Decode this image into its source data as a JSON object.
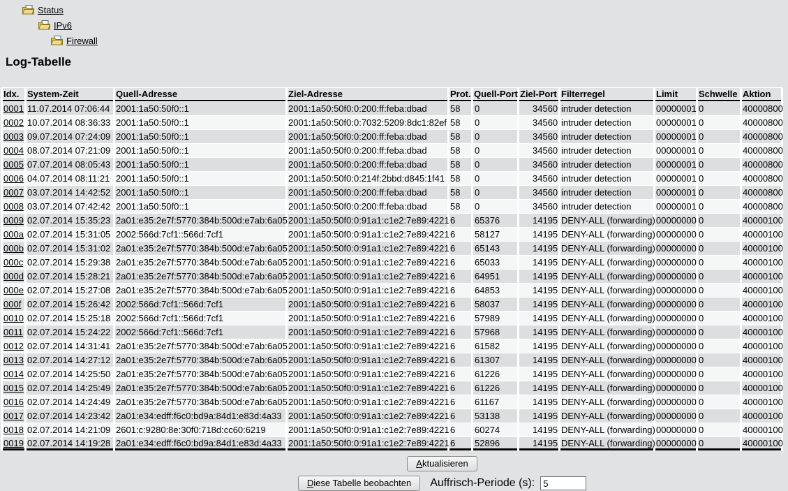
{
  "nav": {
    "items": [
      {
        "label": "Status"
      },
      {
        "label": "IPv6"
      },
      {
        "label": "Firewall"
      }
    ]
  },
  "page": {
    "title": "Log-Tabelle"
  },
  "log_table": {
    "columns": [
      "Idx.",
      "System-Zeit",
      "Quell-Adresse",
      "Ziel-Adresse",
      "Prot.",
      "Quell-Port",
      "Ziel-Port",
      "Filterregel",
      "Limit",
      "Schwelle",
      "Aktion"
    ],
    "rows": [
      [
        "0001",
        "11.07.2014 07:06:44",
        "2001:1a50:50f0::1",
        "2001:1a50:50f0:0:200:ff:feba:dbad",
        "58",
        "0",
        "34560",
        "intruder detection",
        "00000001",
        "0",
        "40000800"
      ],
      [
        "0002",
        "10.07.2014 08:36:33",
        "2001:1a50:50f0::1",
        "2001:1a50:50f0:0:7032:5209:8dc1:82ef",
        "58",
        "0",
        "34560",
        "intruder detection",
        "00000001",
        "0",
        "40000800"
      ],
      [
        "0003",
        "09.07.2014 07:24:09",
        "2001:1a50:50f0::1",
        "2001:1a50:50f0:0:200:ff:feba:dbad",
        "58",
        "0",
        "34560",
        "intruder detection",
        "00000001",
        "0",
        "40000800"
      ],
      [
        "0004",
        "08.07.2014 07:21:09",
        "2001:1a50:50f0::1",
        "2001:1a50:50f0:0:200:ff:feba:dbad",
        "58",
        "0",
        "34560",
        "intruder detection",
        "00000001",
        "0",
        "40000800"
      ],
      [
        "0005",
        "07.07.2014 08:05:43",
        "2001:1a50:50f0::1",
        "2001:1a50:50f0:0:200:ff:feba:dbad",
        "58",
        "0",
        "34560",
        "intruder detection",
        "00000001",
        "0",
        "40000800"
      ],
      [
        "0006",
        "04.07.2014 08:11:21",
        "2001:1a50:50f0::1",
        "2001:1a50:50f0:0:214f:2bbd:d845:1f41",
        "58",
        "0",
        "34560",
        "intruder detection",
        "00000001",
        "0",
        "40000800"
      ],
      [
        "0007",
        "03.07.2014 14:42:52",
        "2001:1a50:50f0::1",
        "2001:1a50:50f0:0:200:ff:feba:dbad",
        "58",
        "0",
        "34560",
        "intruder detection",
        "00000001",
        "0",
        "40000800"
      ],
      [
        "0008",
        "03.07.2014 07:42:42",
        "2001:1a50:50f0::1",
        "2001:1a50:50f0:0:200:ff:feba:dbad",
        "58",
        "0",
        "34560",
        "intruder detection",
        "00000001",
        "0",
        "40000800"
      ],
      [
        "0009",
        "02.07.2014 15:35:23",
        "2a01:e35:2e7f:5770:384b:500d:e7ab:6a05",
        "2001:1a50:50f0:0:91a1:c1e2:7e89:4221",
        "6",
        "65376",
        "14195",
        "DENY-ALL (forwarding)",
        "00000000",
        "0",
        "40000100"
      ],
      [
        "000a",
        "02.07.2014 15:31:05",
        "2002:566d:7cf1::566d:7cf1",
        "2001:1a50:50f0:0:91a1:c1e2:7e89:4221",
        "6",
        "58127",
        "14195",
        "DENY-ALL (forwarding)",
        "00000000",
        "0",
        "40000100"
      ],
      [
        "000b",
        "02.07.2014 15:31:02",
        "2a01:e35:2e7f:5770:384b:500d:e7ab:6a05",
        "2001:1a50:50f0:0:91a1:c1e2:7e89:4221",
        "6",
        "65143",
        "14195",
        "DENY-ALL (forwarding)",
        "00000000",
        "0",
        "40000100"
      ],
      [
        "000c",
        "02.07.2014 15:29:38",
        "2a01:e35:2e7f:5770:384b:500d:e7ab:6a05",
        "2001:1a50:50f0:0:91a1:c1e2:7e89:4221",
        "6",
        "65033",
        "14195",
        "DENY-ALL (forwarding)",
        "00000000",
        "0",
        "40000100"
      ],
      [
        "000d",
        "02.07.2014 15:28:21",
        "2a01:e35:2e7f:5770:384b:500d:e7ab:6a05",
        "2001:1a50:50f0:0:91a1:c1e2:7e89:4221",
        "6",
        "64951",
        "14195",
        "DENY-ALL (forwarding)",
        "00000000",
        "0",
        "40000100"
      ],
      [
        "000e",
        "02.07.2014 15:27:08",
        "2a01:e35:2e7f:5770:384b:500d:e7ab:6a05",
        "2001:1a50:50f0:0:91a1:c1e2:7e89:4221",
        "6",
        "64853",
        "14195",
        "DENY-ALL (forwarding)",
        "00000000",
        "0",
        "40000100"
      ],
      [
        "000f",
        "02.07.2014 15:26:42",
        "2002:566d:7cf1::566d:7cf1",
        "2001:1a50:50f0:0:91a1:c1e2:7e89:4221",
        "6",
        "58037",
        "14195",
        "DENY-ALL (forwarding)",
        "00000000",
        "0",
        "40000100"
      ],
      [
        "0010",
        "02.07.2014 15:25:18",
        "2002:566d:7cf1::566d:7cf1",
        "2001:1a50:50f0:0:91a1:c1e2:7e89:4221",
        "6",
        "57989",
        "14195",
        "DENY-ALL (forwarding)",
        "00000000",
        "0",
        "40000100"
      ],
      [
        "0011",
        "02.07.2014 15:24:22",
        "2002:566d:7cf1::566d:7cf1",
        "2001:1a50:50f0:0:91a1:c1e2:7e89:4221",
        "6",
        "57968",
        "14195",
        "DENY-ALL (forwarding)",
        "00000000",
        "0",
        "40000100"
      ],
      [
        "0012",
        "02.07.2014 14:31:41",
        "2a01:e35:2e7f:5770:384b:500d:e7ab:6a05",
        "2001:1a50:50f0:0:91a1:c1e2:7e89:4221",
        "6",
        "61582",
        "14195",
        "DENY-ALL (forwarding)",
        "00000000",
        "0",
        "40000100"
      ],
      [
        "0013",
        "02.07.2014 14:27:12",
        "2a01:e35:2e7f:5770:384b:500d:e7ab:6a05",
        "2001:1a50:50f0:0:91a1:c1e2:7e89:4221",
        "6",
        "61307",
        "14195",
        "DENY-ALL (forwarding)",
        "00000000",
        "0",
        "40000100"
      ],
      [
        "0014",
        "02.07.2014 14:25:50",
        "2a01:e35:2e7f:5770:384b:500d:e7ab:6a05",
        "2001:1a50:50f0:0:91a1:c1e2:7e89:4221",
        "6",
        "61226",
        "14195",
        "DENY-ALL (forwarding)",
        "00000000",
        "0",
        "40000100"
      ],
      [
        "0015",
        "02.07.2014 14:25:49",
        "2a01:e35:2e7f:5770:384b:500d:e7ab:6a05",
        "2001:1a50:50f0:0:91a1:c1e2:7e89:4221",
        "6",
        "61226",
        "14195",
        "DENY-ALL (forwarding)",
        "00000000",
        "0",
        "40000100"
      ],
      [
        "0016",
        "02.07.2014 14:24:49",
        "2a01:e35:2e7f:5770:384b:500d:e7ab:6a05",
        "2001:1a50:50f0:0:91a1:c1e2:7e89:4221",
        "6",
        "61167",
        "14195",
        "DENY-ALL (forwarding)",
        "00000000",
        "0",
        "40000100"
      ],
      [
        "0017",
        "02.07.2014 14:23:42",
        "2a01:e34:edff:f6c0:bd9a:84d1:e83d:4a33",
        "2001:1a50:50f0:0:91a1:c1e2:7e89:4221",
        "6",
        "53138",
        "14195",
        "DENY-ALL (forwarding)",
        "00000000",
        "0",
        "40000100"
      ],
      [
        "0018",
        "02.07.2014 14:21:09",
        "2601:c:9280:8e:30f0:718d:cc60:6219",
        "2001:1a50:50f0:0:91a1:c1e2:7e89:4221",
        "6",
        "60274",
        "14195",
        "DENY-ALL (forwarding)",
        "00000000",
        "0",
        "40000100"
      ],
      [
        "0019",
        "02.07.2014 14:19:28",
        "2a01:e34:edff:f6c0:bd9a:84d1:e83d:4a33",
        "2001:1a50:50f0:0:91a1:c1e2:7e89:4221",
        "6",
        "52896",
        "14195",
        "DENY-ALL (forwarding)",
        "00000000",
        "0",
        "40000100"
      ]
    ]
  },
  "controls": {
    "refresh_button": {
      "accesskey": "A",
      "rest": "ktualisieren"
    },
    "watch_button": {
      "accesskey": "D",
      "rest": "iese Tabelle beobachten"
    },
    "period_label": "Auffrisch-Periode (s):",
    "period_value": "5"
  },
  "colors": {
    "page_bg": "#e0e2e3",
    "row_gray": "#dcdedf",
    "row_light": "#f5f6f6",
    "header_rule": "#000000",
    "folder_icon": "#e9c65f"
  }
}
